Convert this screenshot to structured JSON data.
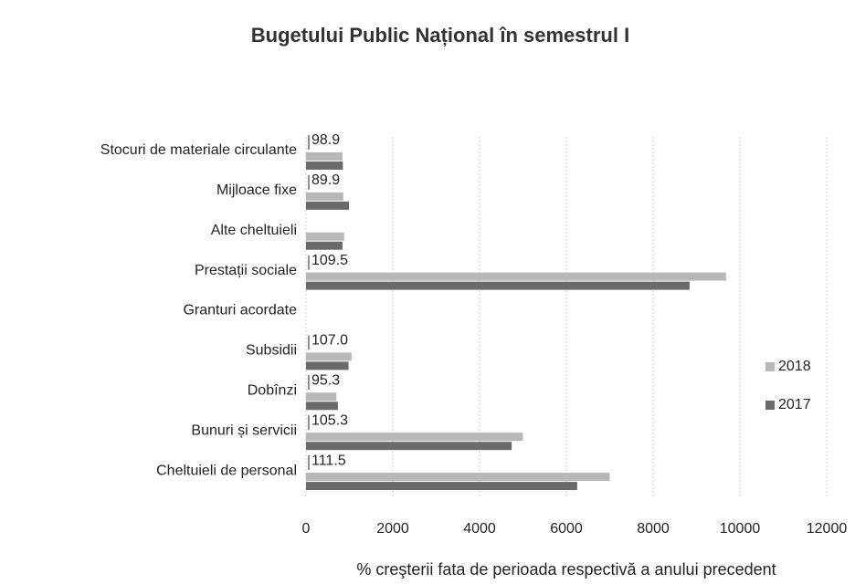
{
  "chart_data": {
    "type": "barh",
    "title": "Bugetului Public Național în semestrul I",
    "x_label": "% creşterii fata de perioada respectivă a anului precedent",
    "categories": [
      "Cheltuieli de personal",
      "Bunuri și servicii",
      "Dobînzi",
      "Subsidii",
      "Granturi acordate",
      "Prestații sociale",
      "Alte cheltuieli",
      "Mijloace fixe",
      "Stocuri de materiale circulante"
    ],
    "series": [
      {
        "name": "2018",
        "color": "#b8b8b8",
        "values": [
          7000,
          5000,
          700,
          1050,
          0,
          9680,
          880,
          860,
          840
        ]
      },
      {
        "name": "2017",
        "color": "#6a6a6a",
        "values": [
          6250,
          4740,
          735,
          980,
          0,
          8840,
          840,
          990,
          850
        ]
      }
    ],
    "growth": {
      "values": [
        111.5,
        105.3,
        95.3,
        107,
        null,
        109.5,
        null,
        89.9,
        98.9
      ],
      "value_labels": [
        "111.5",
        "105.3",
        "95.3",
        "107.0",
        null,
        "109.5",
        null,
        "89.9",
        "98.9"
      ]
    },
    "xlim": [
      0,
      12000
    ],
    "xticks": [
      0,
      2000,
      4000,
      6000,
      8000,
      10000,
      12000
    ],
    "grid": true,
    "legend": "right"
  }
}
